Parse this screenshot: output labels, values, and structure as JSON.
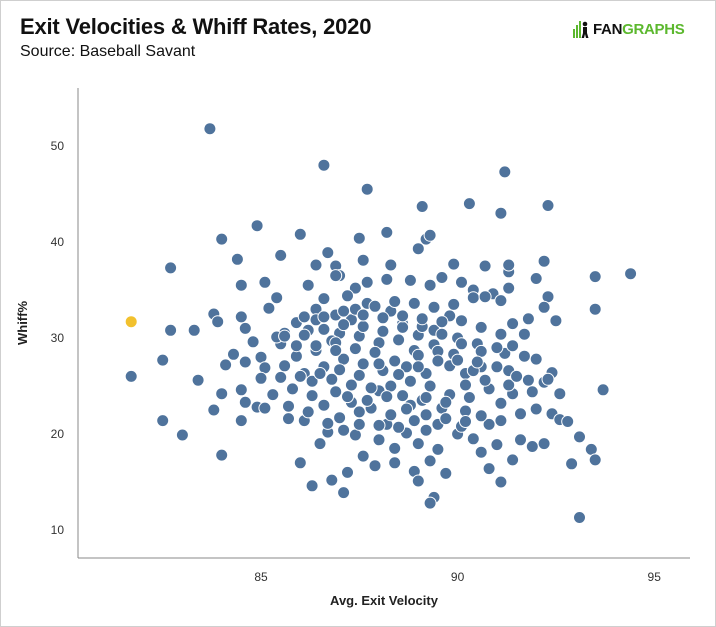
{
  "header": {
    "title": "Exit Velocities & Whiff Rates, 2020",
    "subtitle": "Source: Baseball Savant",
    "logo_text_left": "FAN",
    "logo_text_right": "GRAPHS"
  },
  "colors": {
    "point": "#4f739c",
    "point_stroke": "#ffffff",
    "highlight": "#f2c12e",
    "axis": "#888888",
    "logo_green": "#5cb82e"
  },
  "chart_data": {
    "type": "scatter",
    "title": "Exit Velocities & Whiff Rates, 2020",
    "subtitle": "Source: Baseball Savant",
    "xlabel": "Avg. Exit Velocity",
    "ylabel": "Whiff%",
    "xlim": [
      80.5,
      95.8
    ],
    "ylim": [
      8,
      56
    ],
    "xticks": [
      85,
      90,
      95
    ],
    "yticks": [
      10,
      20,
      30,
      40,
      50
    ],
    "grid": false,
    "highlight": {
      "x": 81.7,
      "y": 31.7
    },
    "points": [
      [
        83.7,
        51.8
      ],
      [
        86.6,
        48.0
      ],
      [
        87.7,
        45.5
      ],
      [
        91.2,
        47.3
      ],
      [
        90.3,
        44.0
      ],
      [
        89.1,
        43.7
      ],
      [
        91.1,
        43.0
      ],
      [
        92.3,
        43.8
      ],
      [
        84.9,
        41.7
      ],
      [
        84.0,
        40.3
      ],
      [
        86.0,
        40.8
      ],
      [
        87.5,
        40.4
      ],
      [
        88.2,
        41.0
      ],
      [
        89.2,
        40.3
      ],
      [
        89.3,
        40.7
      ],
      [
        89.0,
        39.3
      ],
      [
        86.7,
        38.9
      ],
      [
        86.4,
        37.6
      ],
      [
        86.9,
        37.5
      ],
      [
        84.4,
        38.2
      ],
      [
        85.5,
        38.6
      ],
      [
        82.7,
        37.3
      ],
      [
        90.7,
        37.5
      ],
      [
        91.3,
        36.9
      ],
      [
        92.2,
        38.0
      ],
      [
        93.5,
        36.4
      ],
      [
        94.4,
        36.7
      ],
      [
        92.0,
        36.2
      ],
      [
        83.8,
        32.5
      ],
      [
        83.9,
        31.7
      ],
      [
        83.3,
        30.8
      ],
      [
        82.7,
        30.8
      ],
      [
        84.5,
        35.5
      ],
      [
        85.1,
        35.8
      ],
      [
        85.2,
        33.1
      ],
      [
        85.4,
        34.2
      ],
      [
        84.5,
        32.2
      ],
      [
        84.6,
        31.0
      ],
      [
        85.6,
        30.5
      ],
      [
        86.4,
        33.0
      ],
      [
        86.2,
        35.5
      ],
      [
        86.6,
        34.1
      ],
      [
        87.0,
        36.5
      ],
      [
        87.4,
        35.2
      ],
      [
        87.7,
        35.8
      ],
      [
        88.2,
        36.1
      ],
      [
        88.8,
        36.0
      ],
      [
        89.3,
        35.5
      ],
      [
        89.6,
        36.3
      ],
      [
        90.4,
        35.0
      ],
      [
        90.9,
        34.6
      ],
      [
        91.3,
        35.2
      ],
      [
        92.3,
        34.3
      ],
      [
        92.2,
        33.2
      ],
      [
        93.5,
        33.0
      ],
      [
        92.5,
        31.8
      ],
      [
        91.8,
        32.0
      ],
      [
        89.8,
        32.3
      ],
      [
        89.4,
        30.8
      ],
      [
        89.0,
        30.3
      ],
      [
        88.6,
        31.5
      ],
      [
        88.3,
        32.8
      ],
      [
        87.7,
        33.6
      ],
      [
        87.2,
        34.4
      ],
      [
        87.3,
        31.9
      ],
      [
        87.0,
        30.5
      ],
      [
        86.8,
        29.7
      ],
      [
        86.2,
        30.8
      ],
      [
        85.5,
        29.4
      ],
      [
        84.8,
        29.6
      ],
      [
        84.3,
        28.3
      ],
      [
        85.0,
        28.0
      ],
      [
        85.9,
        28.1
      ],
      [
        86.4,
        28.7
      ],
      [
        86.9,
        29.5
      ],
      [
        87.5,
        30.2
      ],
      [
        88.0,
        29.5
      ],
      [
        88.5,
        29.8
      ],
      [
        88.9,
        28.7
      ],
      [
        89.4,
        29.3
      ],
      [
        90.0,
        30.0
      ],
      [
        90.5,
        29.4
      ],
      [
        91.2,
        28.4
      ],
      [
        91.7,
        28.1
      ],
      [
        92.0,
        27.8
      ],
      [
        91.3,
        26.6
      ],
      [
        90.6,
        27.0
      ],
      [
        90.2,
        26.3
      ],
      [
        89.8,
        27.1
      ],
      [
        89.2,
        26.3
      ],
      [
        88.7,
        27.0
      ],
      [
        88.1,
        26.6
      ],
      [
        87.6,
        27.3
      ],
      [
        87.1,
        27.8
      ],
      [
        86.6,
        27.0
      ],
      [
        86.1,
        26.3
      ],
      [
        85.6,
        27.1
      ],
      [
        85.1,
        26.9
      ],
      [
        84.6,
        27.5
      ],
      [
        83.4,
        25.6
      ],
      [
        82.5,
        27.7
      ],
      [
        81.7,
        26.0
      ],
      [
        84.5,
        24.6
      ],
      [
        84.6,
        23.3
      ],
      [
        84.9,
        22.8
      ],
      [
        84.5,
        21.4
      ],
      [
        84.0,
        17.8
      ],
      [
        82.5,
        21.4
      ],
      [
        83.0,
        19.9
      ],
      [
        85.1,
        22.7
      ],
      [
        85.7,
        22.9
      ],
      [
        86.1,
        21.4
      ],
      [
        86.0,
        17.0
      ],
      [
        86.7,
        20.2
      ],
      [
        87.1,
        20.4
      ],
      [
        86.8,
        15.2
      ],
      [
        87.2,
        16.0
      ],
      [
        87.1,
        13.9
      ],
      [
        87.4,
        19.9
      ],
      [
        87.9,
        16.7
      ],
      [
        88.4,
        18.5
      ],
      [
        88.9,
        16.1
      ],
      [
        89.0,
        15.1
      ],
      [
        89.3,
        17.2
      ],
      [
        89.4,
        13.4
      ],
      [
        89.7,
        15.9
      ],
      [
        89.5,
        18.4
      ],
      [
        89.0,
        19.0
      ],
      [
        88.7,
        20.1
      ],
      [
        88.2,
        21.0
      ],
      [
        87.8,
        22.7
      ],
      [
        87.3,
        23.3
      ],
      [
        86.9,
        24.4
      ],
      [
        86.3,
        24.0
      ],
      [
        85.8,
        24.7
      ],
      [
        85.3,
        24.1
      ],
      [
        88.0,
        24.5
      ],
      [
        88.6,
        24.0
      ],
      [
        89.1,
        23.5
      ],
      [
        89.6,
        22.7
      ],
      [
        90.2,
        22.4
      ],
      [
        90.0,
        20.0
      ],
      [
        90.4,
        19.5
      ],
      [
        90.8,
        21.0
      ],
      [
        91.1,
        21.4
      ],
      [
        91.0,
        18.9
      ],
      [
        90.8,
        16.4
      ],
      [
        91.1,
        15.0
      ],
      [
        91.6,
        19.4
      ],
      [
        91.9,
        18.7
      ],
      [
        92.2,
        19.0
      ],
      [
        92.4,
        22.1
      ],
      [
        92.6,
        21.5
      ],
      [
        92.8,
        21.3
      ],
      [
        93.1,
        19.7
      ],
      [
        93.4,
        18.4
      ],
      [
        93.5,
        17.3
      ],
      [
        93.1,
        11.3
      ],
      [
        93.7,
        24.6
      ],
      [
        92.4,
        26.4
      ],
      [
        92.2,
        25.4
      ],
      [
        91.9,
        24.4
      ],
      [
        91.4,
        24.2
      ],
      [
        90.8,
        24.7
      ],
      [
        90.3,
        23.8
      ],
      [
        89.8,
        24.1
      ],
      [
        89.3,
        25.0
      ],
      [
        88.8,
        25.5
      ],
      [
        88.3,
        25.0
      ],
      [
        87.8,
        24.8
      ],
      [
        87.3,
        25.1
      ],
      [
        86.8,
        25.7
      ],
      [
        86.3,
        25.5
      ],
      [
        86.6,
        23.0
      ],
      [
        87.0,
        21.7
      ],
      [
        87.5,
        22.3
      ],
      [
        88.3,
        22.0
      ],
      [
        88.9,
        21.4
      ],
      [
        89.5,
        21.0
      ],
      [
        90.1,
        20.8
      ],
      [
        90.6,
        21.9
      ],
      [
        91.6,
        22.1
      ],
      [
        92.0,
        22.6
      ],
      [
        91.1,
        23.2
      ],
      [
        90.4,
        26.6
      ],
      [
        89.9,
        28.3
      ],
      [
        89.5,
        28.6
      ],
      [
        89.0,
        28.2
      ],
      [
        88.4,
        27.6
      ],
      [
        87.9,
        28.5
      ],
      [
        87.4,
        28.9
      ],
      [
        86.9,
        28.7
      ],
      [
        86.4,
        29.2
      ],
      [
        85.9,
        29.2
      ],
      [
        85.4,
        30.1
      ],
      [
        85.9,
        31.6
      ],
      [
        86.4,
        31.9
      ],
      [
        86.9,
        32.4
      ],
      [
        87.4,
        33.0
      ],
      [
        87.9,
        33.3
      ],
      [
        88.4,
        33.8
      ],
      [
        88.9,
        33.6
      ],
      [
        89.4,
        33.2
      ],
      [
        89.9,
        33.5
      ],
      [
        90.4,
        34.2
      ],
      [
        90.7,
        34.3
      ],
      [
        91.1,
        33.9
      ],
      [
        91.4,
        31.5
      ],
      [
        91.7,
        30.4
      ],
      [
        91.4,
        29.2
      ],
      [
        91.0,
        29.0
      ],
      [
        90.6,
        28.6
      ],
      [
        90.1,
        29.4
      ],
      [
        89.6,
        30.4
      ],
      [
        89.1,
        31.2
      ],
      [
        88.6,
        31.1
      ],
      [
        88.1,
        30.7
      ],
      [
        87.6,
        31.2
      ],
      [
        87.1,
        31.4
      ],
      [
        86.6,
        30.9
      ],
      [
        86.1,
        30.3
      ],
      [
        85.6,
        30.2
      ],
      [
        86.1,
        32.2
      ],
      [
        86.6,
        32.2
      ],
      [
        87.1,
        32.8
      ],
      [
        87.6,
        32.4
      ],
      [
        88.1,
        32.1
      ],
      [
        88.6,
        32.3
      ],
      [
        89.1,
        32.0
      ],
      [
        89.6,
        31.7
      ],
      [
        90.1,
        31.8
      ],
      [
        90.6,
        31.1
      ],
      [
        91.1,
        30.4
      ],
      [
        88.8,
        23.0
      ],
      [
        89.2,
        23.8
      ],
      [
        89.7,
        23.3
      ],
      [
        90.2,
        25.1
      ],
      [
        90.7,
        25.6
      ],
      [
        91.3,
        25.1
      ],
      [
        91.8,
        25.6
      ],
      [
        92.3,
        25.7
      ],
      [
        88.0,
        19.4
      ],
      [
        88.5,
        20.7
      ],
      [
        89.2,
        20.4
      ],
      [
        90.6,
        18.1
      ],
      [
        88.4,
        17.0
      ],
      [
        87.6,
        17.7
      ],
      [
        86.5,
        19.0
      ],
      [
        86.2,
        22.3
      ],
      [
        85.7,
        21.6
      ],
      [
        85.5,
        25.9
      ],
      [
        86.0,
        26.0
      ],
      [
        86.5,
        26.3
      ],
      [
        87.0,
        26.7
      ],
      [
        87.5,
        26.1
      ],
      [
        88.0,
        27.3
      ],
      [
        88.5,
        26.2
      ],
      [
        89.0,
        27.0
      ],
      [
        89.5,
        27.6
      ],
      [
        90.0,
        27.7
      ],
      [
        90.5,
        27.5
      ],
      [
        91.0,
        27.0
      ],
      [
        87.2,
        23.9
      ],
      [
        87.7,
        23.5
      ],
      [
        88.2,
        23.9
      ],
      [
        88.7,
        22.6
      ],
      [
        89.2,
        22.0
      ],
      [
        89.7,
        21.6
      ],
      [
        90.2,
        21.3
      ],
      [
        87.5,
        21.0
      ],
      [
        88.0,
        20.9
      ],
      [
        86.7,
        21.1
      ],
      [
        91.5,
        26.0
      ],
      [
        92.6,
        24.2
      ],
      [
        90.1,
        35.8
      ],
      [
        89.9,
        37.7
      ],
      [
        88.3,
        37.6
      ],
      [
        87.6,
        38.1
      ],
      [
        86.9,
        36.5
      ],
      [
        91.3,
        37.6
      ],
      [
        84.1,
        27.2
      ],
      [
        85.0,
        25.8
      ],
      [
        84.0,
        24.2
      ],
      [
        83.8,
        22.5
      ],
      [
        89.3,
        12.8
      ],
      [
        91.4,
        17.3
      ],
      [
        92.9,
        16.9
      ],
      [
        86.3,
        14.6
      ]
    ]
  }
}
